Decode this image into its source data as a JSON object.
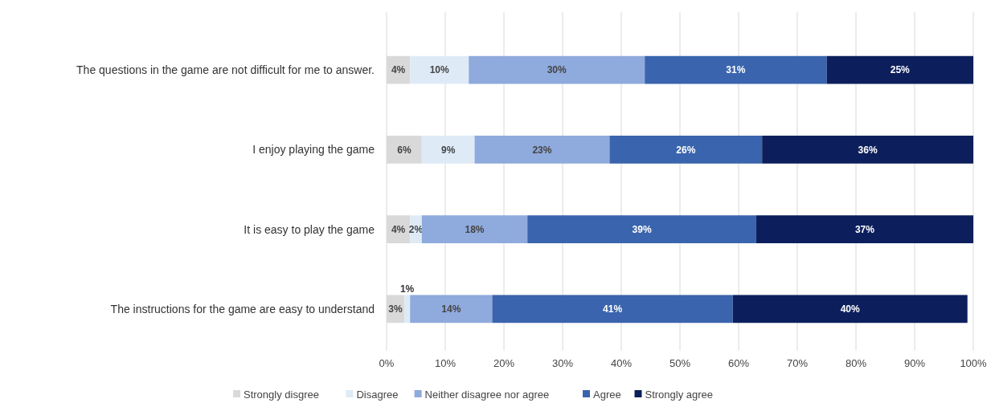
{
  "chart_data": {
    "type": "bar",
    "orientation": "horizontal",
    "stacked": true,
    "categories": [
      "The questions in the game are not difficult for me to answer.",
      "I enjoy playing the game",
      "It is easy to play the game",
      "The instructions for the game are easy to understand"
    ],
    "series": [
      {
        "name": "Strongly disgree",
        "color": "#d9d9d9",
        "values": [
          4,
          6,
          4,
          3
        ],
        "value_labels": [
          "4%",
          "6%",
          "4%",
          "3%"
        ]
      },
      {
        "name": "Disagree",
        "color": "#deebf7",
        "values": [
          10,
          9,
          2,
          1
        ],
        "value_labels": [
          "10%",
          "9%",
          "2%",
          "1%"
        ]
      },
      {
        "name": "Neither disagree nor agree",
        "color": "#8faadc",
        "values": [
          30,
          23,
          18,
          14
        ],
        "value_labels": [
          "30%",
          "23%",
          "18%",
          "14%"
        ]
      },
      {
        "name": "Agree",
        "color": "#3a64ad",
        "values": [
          31,
          26,
          39,
          41
        ],
        "value_labels": [
          "31%",
          "26%",
          "39%",
          "41%"
        ]
      },
      {
        "name": "Strongly agree",
        "color": "#0c1f5c",
        "values": [
          25,
          36,
          37,
          40
        ],
        "value_labels": [
          "25%",
          "36%",
          "37%",
          "40%"
        ]
      }
    ],
    "xlim": [
      0,
      100
    ],
    "xticks": [
      {
        "value": 0,
        "label": "0%"
      },
      {
        "value": 10,
        "label": "10%"
      },
      {
        "value": 20,
        "label": "20%"
      },
      {
        "value": 30,
        "label": "30%"
      },
      {
        "value": 40,
        "label": "40%"
      },
      {
        "value": 50,
        "label": "50%"
      },
      {
        "value": 60,
        "label": "60%"
      },
      {
        "value": 70,
        "label": "70%"
      },
      {
        "value": 80,
        "label": "80%"
      },
      {
        "value": 90,
        "label": "90%"
      },
      {
        "value": 100,
        "label": "100%"
      }
    ],
    "grid": "x",
    "legend": "bottom"
  }
}
